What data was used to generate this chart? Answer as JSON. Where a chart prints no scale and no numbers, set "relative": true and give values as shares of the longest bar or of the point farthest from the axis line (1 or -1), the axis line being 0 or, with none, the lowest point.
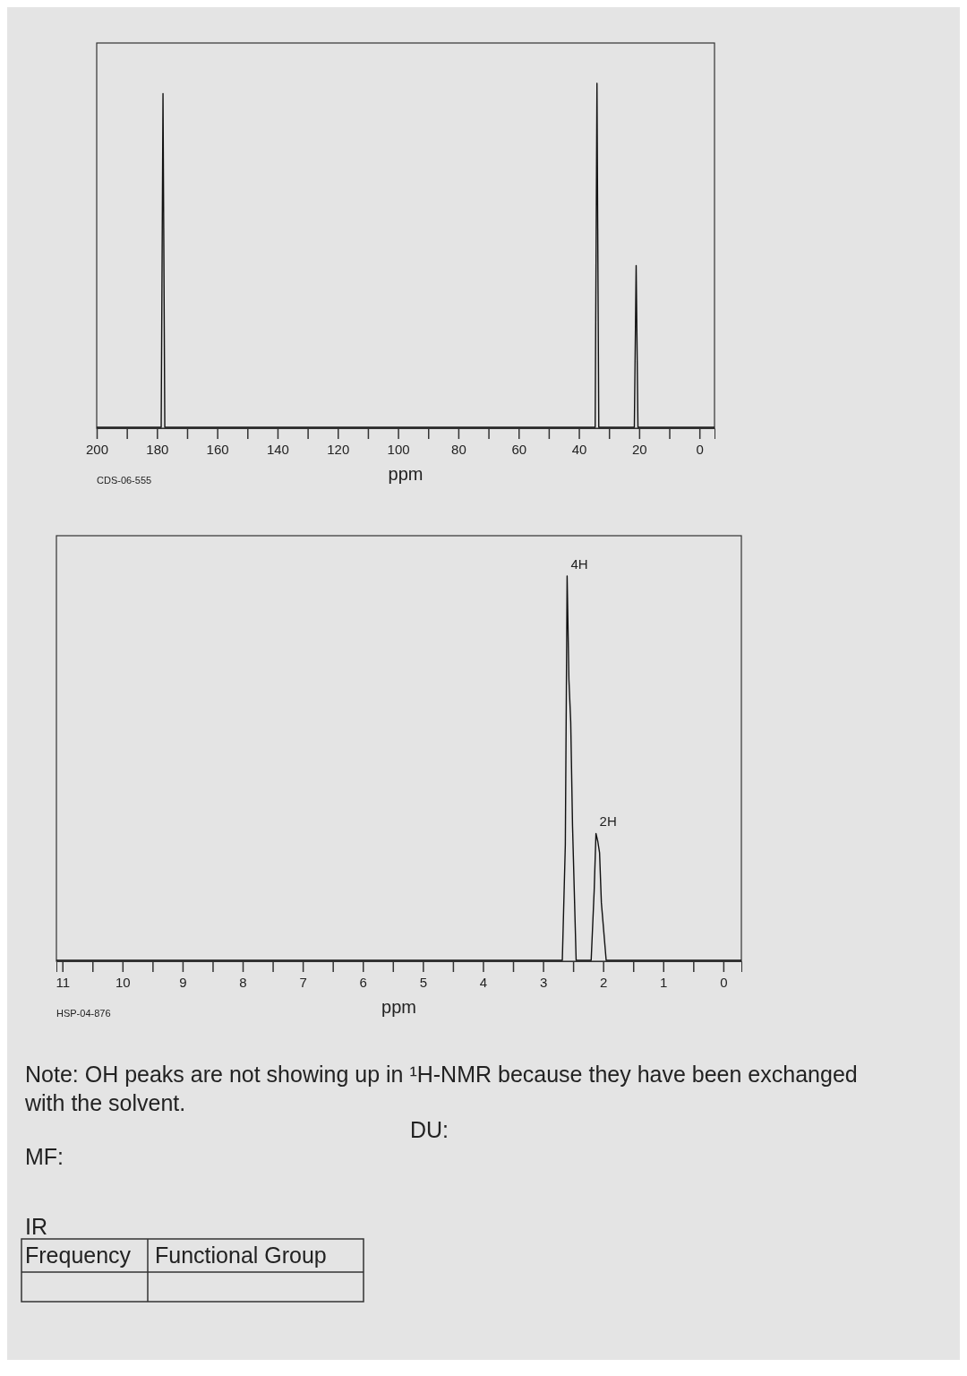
{
  "chart_data": [
    {
      "type": "line",
      "relative": true,
      "xlabel": "ppm",
      "xlim": [
        200,
        -5
      ],
      "xticks": [
        200,
        {
          "value": 190,
          "label": null
        },
        180,
        {
          "value": 170,
          "label": null
        },
        160,
        {
          "value": 150,
          "label": null
        },
        140,
        {
          "value": 130,
          "label": null
        },
        120,
        {
          "value": 110,
          "label": null
        },
        100,
        {
          "value": 90,
          "label": null
        },
        80,
        {
          "value": 70,
          "label": null
        },
        60,
        {
          "value": 50,
          "label": null
        },
        40,
        {
          "value": 30,
          "label": null
        },
        20,
        {
          "value": 10,
          "label": null
        },
        0
      ],
      "x": [
        200,
        178.6,
        178,
        177.4,
        34.6,
        34,
        33.4,
        21.6,
        21,
        20.4,
        -5
      ],
      "values": [
        0,
        0,
        0.97,
        0,
        0,
        1,
        0,
        0,
        0.47,
        0,
        0
      ],
      "color": "#111111",
      "annotations": [
        "CDS-06-555"
      ]
    },
    {
      "type": "line",
      "relative": true,
      "xlabel": "ppm",
      "xlim": [
        11.1,
        -0.3
      ],
      "xticks": [
        11,
        {
          "value": 10.5,
          "label": null
        },
        10,
        {
          "value": 9.5,
          "label": null
        },
        9,
        {
          "value": 8.5,
          "label": null
        },
        8,
        {
          "value": 7.5,
          "label": null
        },
        7,
        {
          "value": 6.5,
          "label": null
        },
        6,
        {
          "value": 5.5,
          "label": null
        },
        5,
        {
          "value": 4.5,
          "label": null
        },
        4,
        {
          "value": 3.5,
          "label": null
        },
        3,
        {
          "value": 2.5,
          "label": null
        },
        2,
        {
          "value": 1.5,
          "label": null
        },
        1,
        {
          "value": 0.5,
          "label": null
        },
        0
      ],
      "x": [
        11.1,
        2.68,
        2.63,
        2.6,
        2.57,
        2.54,
        2.51,
        2.45,
        2.2,
        2.15,
        2.12,
        2.09,
        2.06,
        2.03,
        1.95,
        -0.3
      ],
      "values": [
        0,
        0,
        0.3,
        1,
        0.73,
        0.62,
        0.35,
        0,
        0,
        0.18,
        0.33,
        0.31,
        0.28,
        0.15,
        0,
        0
      ],
      "color": "#111111",
      "annotations": [
        {
          "text": "4H",
          "x": 2.6,
          "y": 1
        },
        {
          "text": "2H",
          "x": 2.12,
          "y": 0.33
        },
        "HSP-04-876"
      ]
    },
    {
      "type": "other",
      "annotations": [
        "Note: OH peaks are not showing up in ¹H-NMR because they have been exchanged with the solvent.",
        "DU:",
        "MF:",
        "IR",
        "Frequency",
        "Functional Group"
      ]
    }
  ]
}
